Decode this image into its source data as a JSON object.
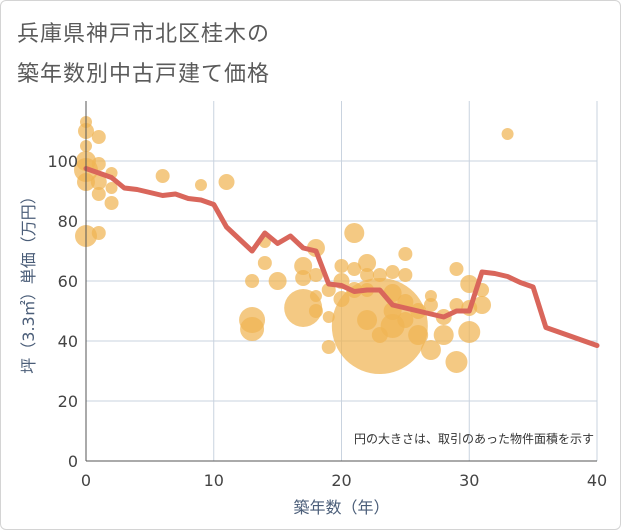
{
  "title_line1": "兵庫県神戸市北区桂木の",
  "title_line2": "築年数別中古戸建て価格",
  "chart_data": {
    "type": "scatter",
    "xlabel": "築年数（年）",
    "ylabel": "坪（3.3㎡）単価（万円）",
    "xlim": [
      0,
      40
    ],
    "ylim": [
      0,
      120
    ],
    "xticks": [
      "0",
      "10",
      "20",
      "30",
      "40"
    ],
    "yticks": [
      "0",
      "20",
      "40",
      "60",
      "80",
      "100"
    ],
    "grid": true,
    "note": "円の大きさは、取引のあった物件面積を示す",
    "bubble_color": "#f0b453",
    "line_color": "#d9665b",
    "bubbles": [
      {
        "x": 0,
        "y": 113,
        "s": 6
      },
      {
        "x": 0,
        "y": 110,
        "s": 8
      },
      {
        "x": 0,
        "y": 105,
        "s": 6
      },
      {
        "x": 0,
        "y": 100,
        "s": 10
      },
      {
        "x": 0,
        "y": 97,
        "s": 12
      },
      {
        "x": 0,
        "y": 93,
        "s": 9
      },
      {
        "x": 0,
        "y": 75,
        "s": 11
      },
      {
        "x": 1,
        "y": 108,
        "s": 7
      },
      {
        "x": 1,
        "y": 99,
        "s": 7
      },
      {
        "x": 1,
        "y": 93,
        "s": 8
      },
      {
        "x": 1,
        "y": 89,
        "s": 7
      },
      {
        "x": 1,
        "y": 76,
        "s": 7
      },
      {
        "x": 2,
        "y": 96,
        "s": 6
      },
      {
        "x": 2,
        "y": 91,
        "s": 6
      },
      {
        "x": 2,
        "y": 86,
        "s": 7
      },
      {
        "x": 6,
        "y": 95,
        "s": 7
      },
      {
        "x": 9,
        "y": 92,
        "s": 6
      },
      {
        "x": 11,
        "y": 93,
        "s": 8
      },
      {
        "x": 13,
        "y": 60,
        "s": 7
      },
      {
        "x": 13,
        "y": 47,
        "s": 13
      },
      {
        "x": 13,
        "y": 44,
        "s": 12
      },
      {
        "x": 14,
        "y": 66,
        "s": 7
      },
      {
        "x": 14,
        "y": 73,
        "s": 6
      },
      {
        "x": 15,
        "y": 60,
        "s": 9
      },
      {
        "x": 17,
        "y": 65,
        "s": 9
      },
      {
        "x": 17,
        "y": 61,
        "s": 8
      },
      {
        "x": 17,
        "y": 51,
        "s": 19
      },
      {
        "x": 18,
        "y": 71,
        "s": 9
      },
      {
        "x": 18,
        "y": 62,
        "s": 7
      },
      {
        "x": 18,
        "y": 55,
        "s": 6
      },
      {
        "x": 18,
        "y": 50,
        "s": 7
      },
      {
        "x": 19,
        "y": 48,
        "s": 6
      },
      {
        "x": 19,
        "y": 38,
        "s": 7
      },
      {
        "x": 19,
        "y": 57,
        "s": 7
      },
      {
        "x": 20,
        "y": 65,
        "s": 7
      },
      {
        "x": 20,
        "y": 60,
        "s": 8
      },
      {
        "x": 20,
        "y": 54,
        "s": 8
      },
      {
        "x": 21,
        "y": 76,
        "s": 10
      },
      {
        "x": 21,
        "y": 64,
        "s": 7
      },
      {
        "x": 21,
        "y": 57,
        "s": 8
      },
      {
        "x": 22,
        "y": 66,
        "s": 9
      },
      {
        "x": 22,
        "y": 62,
        "s": 7
      },
      {
        "x": 22,
        "y": 57,
        "s": 7
      },
      {
        "x": 22,
        "y": 47,
        "s": 10
      },
      {
        "x": 23,
        "y": 45,
        "s": 48
      },
      {
        "x": 23,
        "y": 42,
        "s": 8
      },
      {
        "x": 23,
        "y": 62,
        "s": 7
      },
      {
        "x": 24,
        "y": 63,
        "s": 7
      },
      {
        "x": 24,
        "y": 56,
        "s": 9
      },
      {
        "x": 24,
        "y": 50,
        "s": 9
      },
      {
        "x": 24,
        "y": 45,
        "s": 12
      },
      {
        "x": 25,
        "y": 69,
        "s": 7
      },
      {
        "x": 25,
        "y": 62,
        "s": 7
      },
      {
        "x": 25,
        "y": 53,
        "s": 8
      },
      {
        "x": 25,
        "y": 47,
        "s": 8
      },
      {
        "x": 26,
        "y": 50,
        "s": 8
      },
      {
        "x": 26,
        "y": 42,
        "s": 10
      },
      {
        "x": 27,
        "y": 55,
        "s": 6
      },
      {
        "x": 27,
        "y": 52,
        "s": 7
      },
      {
        "x": 27,
        "y": 37,
        "s": 10
      },
      {
        "x": 28,
        "y": 48,
        "s": 8
      },
      {
        "x": 28,
        "y": 42,
        "s": 10
      },
      {
        "x": 29,
        "y": 64,
        "s": 7
      },
      {
        "x": 29,
        "y": 52,
        "s": 7
      },
      {
        "x": 29,
        "y": 33,
        "s": 11
      },
      {
        "x": 30,
        "y": 59,
        "s": 9
      },
      {
        "x": 30,
        "y": 51,
        "s": 8
      },
      {
        "x": 30,
        "y": 43,
        "s": 11
      },
      {
        "x": 31,
        "y": 57,
        "s": 7
      },
      {
        "x": 31,
        "y": 52,
        "s": 9
      },
      {
        "x": 33,
        "y": 109,
        "s": 6
      }
    ],
    "line": {
      "x": [
        0,
        1,
        2,
        3,
        4,
        5,
        6,
        7,
        8,
        9,
        10,
        11,
        12,
        13,
        14,
        15,
        16,
        17,
        18,
        19,
        20,
        21,
        22,
        23,
        24,
        25,
        26,
        27,
        28,
        29,
        30,
        31,
        32,
        33,
        34,
        35,
        36,
        37,
        38,
        39,
        40
      ],
      "y": [
        97.5,
        96,
        94.5,
        91,
        90.5,
        89.5,
        88.5,
        89,
        87.5,
        87,
        85.5,
        78,
        74,
        70,
        76,
        72.5,
        75,
        71,
        70,
        59,
        58.5,
        56.5,
        57,
        57,
        52,
        51,
        50,
        49,
        48,
        50,
        50,
        63,
        62.5,
        61.5,
        59.5,
        58,
        44.5,
        43,
        41.5,
        40,
        38.5
      ]
    }
  }
}
